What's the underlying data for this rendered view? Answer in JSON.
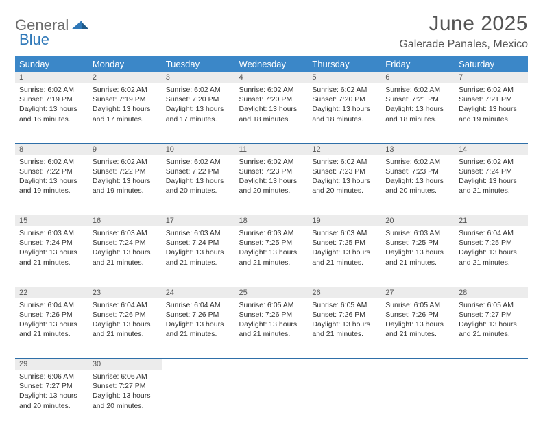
{
  "brand": {
    "main": "General",
    "sub": "Blue"
  },
  "title": "June 2025",
  "location": "Galerade Panales, Mexico",
  "colors": {
    "header_bg": "#3b87c8",
    "header_text": "#ffffff",
    "daynum_bg": "#ececec",
    "row_divider": "#2f6fa8",
    "brand_gray": "#6b6b6b",
    "brand_blue": "#2f78b8",
    "title_color": "#555555"
  },
  "daysOfWeek": [
    "Sunday",
    "Monday",
    "Tuesday",
    "Wednesday",
    "Thursday",
    "Friday",
    "Saturday"
  ],
  "weeks": [
    [
      {
        "n": "1",
        "sunrise": "6:02 AM",
        "sunset": "7:19 PM",
        "daylight": "13 hours and 16 minutes."
      },
      {
        "n": "2",
        "sunrise": "6:02 AM",
        "sunset": "7:19 PM",
        "daylight": "13 hours and 17 minutes."
      },
      {
        "n": "3",
        "sunrise": "6:02 AM",
        "sunset": "7:20 PM",
        "daylight": "13 hours and 17 minutes."
      },
      {
        "n": "4",
        "sunrise": "6:02 AM",
        "sunset": "7:20 PM",
        "daylight": "13 hours and 18 minutes."
      },
      {
        "n": "5",
        "sunrise": "6:02 AM",
        "sunset": "7:20 PM",
        "daylight": "13 hours and 18 minutes."
      },
      {
        "n": "6",
        "sunrise": "6:02 AM",
        "sunset": "7:21 PM",
        "daylight": "13 hours and 18 minutes."
      },
      {
        "n": "7",
        "sunrise": "6:02 AM",
        "sunset": "7:21 PM",
        "daylight": "13 hours and 19 minutes."
      }
    ],
    [
      {
        "n": "8",
        "sunrise": "6:02 AM",
        "sunset": "7:22 PM",
        "daylight": "13 hours and 19 minutes."
      },
      {
        "n": "9",
        "sunrise": "6:02 AM",
        "sunset": "7:22 PM",
        "daylight": "13 hours and 19 minutes."
      },
      {
        "n": "10",
        "sunrise": "6:02 AM",
        "sunset": "7:22 PM",
        "daylight": "13 hours and 20 minutes."
      },
      {
        "n": "11",
        "sunrise": "6:02 AM",
        "sunset": "7:23 PM",
        "daylight": "13 hours and 20 minutes."
      },
      {
        "n": "12",
        "sunrise": "6:02 AM",
        "sunset": "7:23 PM",
        "daylight": "13 hours and 20 minutes."
      },
      {
        "n": "13",
        "sunrise": "6:02 AM",
        "sunset": "7:23 PM",
        "daylight": "13 hours and 20 minutes."
      },
      {
        "n": "14",
        "sunrise": "6:02 AM",
        "sunset": "7:24 PM",
        "daylight": "13 hours and 21 minutes."
      }
    ],
    [
      {
        "n": "15",
        "sunrise": "6:03 AM",
        "sunset": "7:24 PM",
        "daylight": "13 hours and 21 minutes."
      },
      {
        "n": "16",
        "sunrise": "6:03 AM",
        "sunset": "7:24 PM",
        "daylight": "13 hours and 21 minutes."
      },
      {
        "n": "17",
        "sunrise": "6:03 AM",
        "sunset": "7:24 PM",
        "daylight": "13 hours and 21 minutes."
      },
      {
        "n": "18",
        "sunrise": "6:03 AM",
        "sunset": "7:25 PM",
        "daylight": "13 hours and 21 minutes."
      },
      {
        "n": "19",
        "sunrise": "6:03 AM",
        "sunset": "7:25 PM",
        "daylight": "13 hours and 21 minutes."
      },
      {
        "n": "20",
        "sunrise": "6:03 AM",
        "sunset": "7:25 PM",
        "daylight": "13 hours and 21 minutes."
      },
      {
        "n": "21",
        "sunrise": "6:04 AM",
        "sunset": "7:25 PM",
        "daylight": "13 hours and 21 minutes."
      }
    ],
    [
      {
        "n": "22",
        "sunrise": "6:04 AM",
        "sunset": "7:26 PM",
        "daylight": "13 hours and 21 minutes."
      },
      {
        "n": "23",
        "sunrise": "6:04 AM",
        "sunset": "7:26 PM",
        "daylight": "13 hours and 21 minutes."
      },
      {
        "n": "24",
        "sunrise": "6:04 AM",
        "sunset": "7:26 PM",
        "daylight": "13 hours and 21 minutes."
      },
      {
        "n": "25",
        "sunrise": "6:05 AM",
        "sunset": "7:26 PM",
        "daylight": "13 hours and 21 minutes."
      },
      {
        "n": "26",
        "sunrise": "6:05 AM",
        "sunset": "7:26 PM",
        "daylight": "13 hours and 21 minutes."
      },
      {
        "n": "27",
        "sunrise": "6:05 AM",
        "sunset": "7:26 PM",
        "daylight": "13 hours and 21 minutes."
      },
      {
        "n": "28",
        "sunrise": "6:05 AM",
        "sunset": "7:27 PM",
        "daylight": "13 hours and 21 minutes."
      }
    ],
    [
      {
        "n": "29",
        "sunrise": "6:06 AM",
        "sunset": "7:27 PM",
        "daylight": "13 hours and 20 minutes."
      },
      {
        "n": "30",
        "sunrise": "6:06 AM",
        "sunset": "7:27 PM",
        "daylight": "13 hours and 20 minutes."
      },
      null,
      null,
      null,
      null,
      null
    ]
  ],
  "labels": {
    "sunrise": "Sunrise:",
    "sunset": "Sunset:",
    "daylight": "Daylight:"
  }
}
